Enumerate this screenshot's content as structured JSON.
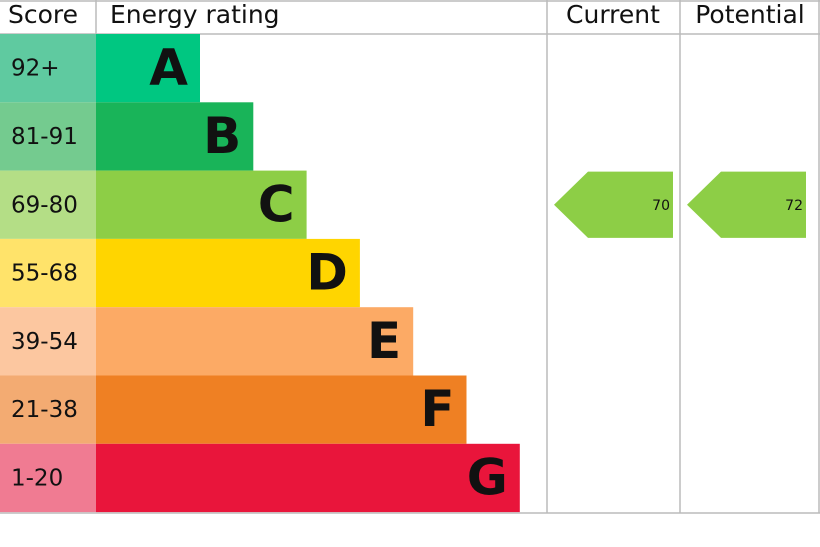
{
  "headers": {
    "score": "Score",
    "rating": "Energy rating",
    "current": "Current",
    "potential": "Potential"
  },
  "bands": [
    {
      "score": "92+",
      "letter": "A",
      "color": "#00c781",
      "score_color": "#5fcaa0"
    },
    {
      "score": "81-91",
      "letter": "B",
      "color": "#19b459",
      "score_color": "#74cb8f"
    },
    {
      "score": "69-80",
      "letter": "C",
      "color": "#8dce46",
      "score_color": "#b4de86"
    },
    {
      "score": "55-68",
      "letter": "D",
      "color": "#ffd500",
      "score_color": "#ffe36a"
    },
    {
      "score": "39-54",
      "letter": "E",
      "color": "#fcaa65",
      "score_color": "#fcc7a0"
    },
    {
      "score": "21-38",
      "letter": "F",
      "color": "#ef8023",
      "score_color": "#f3ab72"
    },
    {
      "score": "1-20",
      "letter": "G",
      "color": "#e9153b",
      "score_color": "#f07b92"
    }
  ],
  "current": {
    "value": 70,
    "color": "#8dce46"
  },
  "potential": {
    "value": 72,
    "color": "#8dce46"
  }
}
